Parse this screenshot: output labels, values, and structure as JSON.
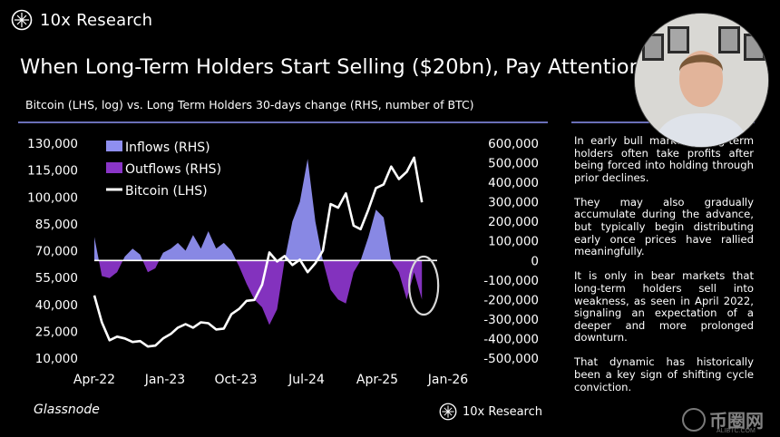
{
  "brand": {
    "name": "10x Research"
  },
  "headline": "When Long-Term Holders Start Selling ($20bn), Pay Attention",
  "subtitle": "Bitcoin (LHS, log) vs. Long Term Holders 30-days change (RHS, number of BTC)",
  "source": "Glassnode",
  "side_text": [
    "In early bull markets, long-term holders often take profits after being forced into holding through prior declines.",
    "They may also gradually accumulate during the advance, but typically begin distributing early once prices have rallied meaningfully.",
    "It is only in bear markets that long-term holders sell into weakness, as seen in April 2022, signaling an expectation of a deeper and more prolonged downturn.",
    "That dynamic has historically been a key sign of shifting cycle conviction."
  ],
  "watermark": {
    "text": "币圈网",
    "sub": "ALIBTC.COM"
  },
  "colors": {
    "inflow": "#8f8ff0",
    "outflow": "#8a35c8",
    "bitcoin": "#ffffff",
    "rule": "#6a6fb8",
    "highlight": "#d8d8d8"
  },
  "chart_data": {
    "type": "area",
    "x_tick_labels": [
      "Apr-22",
      "Jan-23",
      "Oct-23",
      "Jul-24",
      "Apr-25",
      "Jan-26"
    ],
    "x_range": [
      "2022-04",
      "2026-01"
    ],
    "y_left": {
      "label": "Bitcoin (LHS, log)",
      "scale": "log",
      "ticks": [
        "130,000",
        "115,000",
        "100,000",
        "85,000",
        "70,000",
        "55,000",
        "40,000",
        "25,000",
        "10,000"
      ]
    },
    "y_right": {
      "label": "Long Term Holders 30-days change (RHS, number of BTC)",
      "ticks": [
        "600,000",
        "500,000",
        "400,000",
        "300,000",
        "200,000",
        "100,000",
        "0",
        "-100,000",
        "-200,000",
        "-300,000",
        "-400,000",
        "-500,000"
      ],
      "ylim": [
        -500000,
        600000
      ]
    },
    "legend": [
      "Inflows (RHS)",
      "Outflows (RHS)",
      "Bitcoin (LHS)"
    ],
    "legend_position": "top-left",
    "lt_holders_change": {
      "dates": [
        "2022-04-01",
        "2022-05-01",
        "2022-06-01",
        "2022-07-01",
        "2022-08-01",
        "2022-09-01",
        "2022-10-01",
        "2022-11-01",
        "2022-12-01",
        "2023-01-01",
        "2023-02-01",
        "2023-03-01",
        "2023-04-01",
        "2023-05-01",
        "2023-06-01",
        "2023-07-01",
        "2023-08-01",
        "2023-09-01",
        "2023-10-01",
        "2023-11-01",
        "2023-12-01",
        "2024-01-01",
        "2024-02-01",
        "2024-03-01",
        "2024-04-01",
        "2024-05-01",
        "2024-06-01",
        "2024-07-01",
        "2024-08-01",
        "2024-09-01",
        "2024-10-01",
        "2024-11-01",
        "2024-12-01",
        "2025-01-01",
        "2025-02-01",
        "2025-03-01",
        "2025-04-01",
        "2025-05-01",
        "2025-06-01",
        "2025-07-01",
        "2025-08-01",
        "2025-09-01",
        "2025-10-01",
        "2025-11-01"
      ],
      "values": [
        120000,
        -80000,
        -90000,
        -60000,
        20000,
        60000,
        30000,
        -60000,
        -40000,
        40000,
        60000,
        90000,
        50000,
        130000,
        60000,
        150000,
        60000,
        90000,
        50000,
        -30000,
        -120000,
        -200000,
        -240000,
        -330000,
        -250000,
        0,
        200000,
        300000,
        520000,
        200000,
        0,
        -150000,
        -200000,
        -220000,
        -60000,
        0,
        120000,
        260000,
        220000,
        0,
        -60000,
        -200000,
        -60000,
        -200000
      ]
    },
    "bitcoin_price": {
      "dates": [
        "2022-04-01",
        "2022-05-01",
        "2022-06-01",
        "2022-07-01",
        "2022-08-01",
        "2022-09-01",
        "2022-10-01",
        "2022-11-01",
        "2022-12-01",
        "2023-01-01",
        "2023-02-01",
        "2023-03-01",
        "2023-04-01",
        "2023-05-01",
        "2023-06-01",
        "2023-07-01",
        "2023-08-01",
        "2023-09-01",
        "2023-10-01",
        "2023-11-01",
        "2023-12-01",
        "2024-01-01",
        "2024-02-01",
        "2024-03-01",
        "2024-04-01",
        "2024-05-01",
        "2024-06-01",
        "2024-07-01",
        "2024-08-01",
        "2024-09-01",
        "2024-10-01",
        "2024-11-01",
        "2024-12-01",
        "2025-01-01",
        "2025-02-01",
        "2025-03-01",
        "2025-04-01",
        "2025-05-01",
        "2025-06-01",
        "2025-07-01",
        "2025-08-01",
        "2025-09-01",
        "2025-10-01",
        "2025-11-01"
      ],
      "values": [
        45000,
        30000,
        20000,
        22000,
        21000,
        19000,
        19500,
        16500,
        17000,
        21000,
        23500,
        27000,
        29000,
        27000,
        30000,
        29500,
        26000,
        26500,
        34500,
        37500,
        42000,
        42500,
        51000,
        69000,
        64000,
        67000,
        62000,
        65000,
        58000,
        63000,
        70000,
        96000,
        94000,
        102000,
        84000,
        82000,
        93000,
        105000,
        107000,
        117000,
        110000,
        114000,
        122000,
        97000
      ]
    },
    "annotation": {
      "shape": "ellipse",
      "target_date": "2025-11-01"
    }
  }
}
